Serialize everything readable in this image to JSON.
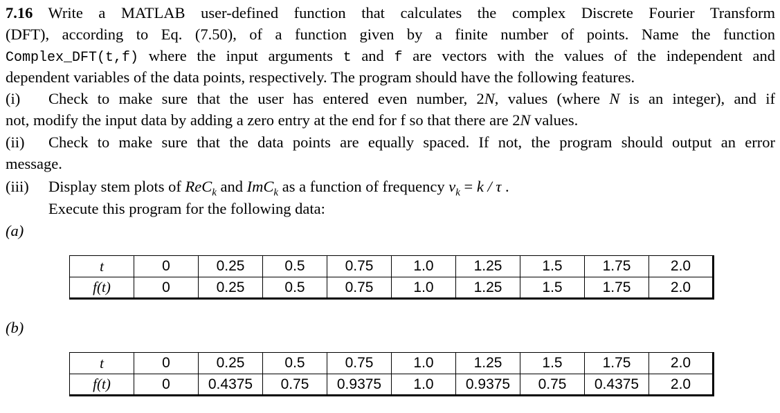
{
  "problem": {
    "number": "7.16",
    "line1_text": " Write a MATLAB user-defined function that calculates the complex Discrete Fourier Transform",
    "line2_text": "(DFT), according to Eq. (7.50), of a function given by a finite number of points. Name the function",
    "line3_code_func": "Complex_DFT(t,f)",
    "line3_mid1": " where the input arguments ",
    "line3_code_t": "t",
    "line3_mid2": " and ",
    "line3_code_f": "f",
    "line3_end": " are vectors with the values of the independent and",
    "line4_text": "dependent variables of the data points, respectively. The program should have the following features."
  },
  "items": [
    {
      "marker": "(i)",
      "text_a": "Check to make sure that the user has entered even number, 2",
      "var_a": "N",
      "text_b": ", values (where ",
      "var_b": "N",
      "text_c": " is an integer), and if",
      "cont_a": "not, modify the input data by adding a zero entry at the end for f so that there are 2",
      "cont_var": "N",
      "cont_b": " values."
    },
    {
      "marker": "(ii)",
      "text": "Check to make sure that the data points are equally spaced. If not, the program should output an error",
      "cont": "message."
    },
    {
      "marker": "(iii)",
      "text_a": "Display stem plots of ",
      "re": "ReC",
      "sub_k1": "k",
      "and": " and ",
      "im": "ImC",
      "sub_k2": "k",
      "text_b": " as a function of frequency ",
      "nu": "ν",
      "sub_k3": "k",
      "eq": " = ",
      "frac": "k / τ",
      "dot": " ."
    }
  ],
  "execute_text": "Execute this program for the following data:",
  "part_a": {
    "label": "(a)",
    "header_t": "t",
    "header_f": "f(t)",
    "t": [
      "0",
      "0.25",
      "0.5",
      "0.75",
      "1.0",
      "1.25",
      "1.5",
      "1.75",
      "2.0"
    ],
    "f": [
      "0",
      "0.25",
      "0.5",
      "0.75",
      "1.0",
      "1.25",
      "1.5",
      "1.75",
      "2.0"
    ]
  },
  "part_b": {
    "label": "(b)",
    "header_t": "t",
    "header_f": "f(t)",
    "t": [
      "0",
      "0.25",
      "0.5",
      "0.75",
      "1.0",
      "1.25",
      "1.5",
      "1.75",
      "2.0"
    ],
    "f": [
      "0",
      "0.4375",
      "0.75",
      "0.9375",
      "1.0",
      "0.9375",
      "0.75",
      "0.4375",
      "2.0"
    ]
  }
}
